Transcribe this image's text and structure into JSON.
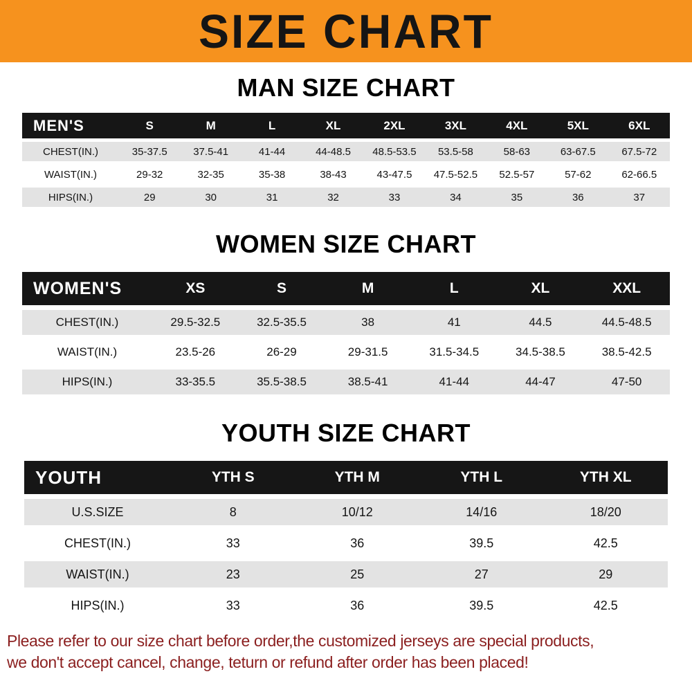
{
  "banner": {
    "title": "SIZE CHART"
  },
  "footer": {
    "line1": "Please refer to our size chart before order,the customized jerseys are special products,",
    "line2": "we don't accept cancel, change, teturn or refund after order has been placed!"
  },
  "colors": {
    "banner_bg": "#f6921e",
    "table_header_bg": "#161616",
    "row_alt_bg": "#e3e3e3",
    "footer_text": "#8b1f1f"
  },
  "chart_data": [
    {
      "type": "table",
      "title": "MAN SIZE CHART",
      "corner_label": "MEN'S",
      "columns": [
        "S",
        "M",
        "L",
        "XL",
        "2XL",
        "3XL",
        "4XL",
        "5XL",
        "6XL"
      ],
      "rows": [
        {
          "label": "CHEST(IN.)",
          "values": [
            "35-37.5",
            "37.5-41",
            "41-44",
            "44-48.5",
            "48.5-53.5",
            "53.5-58",
            "58-63",
            "63-67.5",
            "67.5-72"
          ]
        },
        {
          "label": "WAIST(IN.)",
          "values": [
            "29-32",
            "32-35",
            "35-38",
            "38-43",
            "43-47.5",
            "47.5-52.5",
            "52.5-57",
            "57-62",
            "62-66.5"
          ]
        },
        {
          "label": "HIPS(IN.)",
          "values": [
            "29",
            "30",
            "31",
            "32",
            "33",
            "34",
            "35",
            "36",
            "37"
          ]
        }
      ]
    },
    {
      "type": "table",
      "title": "WOMEN SIZE CHART",
      "corner_label": "WOMEN'S",
      "columns": [
        "XS",
        "S",
        "M",
        "L",
        "XL",
        "XXL"
      ],
      "rows": [
        {
          "label": "CHEST(IN.)",
          "values": [
            "29.5-32.5",
            "32.5-35.5",
            "38",
            "41",
            "44.5",
            "44.5-48.5"
          ]
        },
        {
          "label": "WAIST(IN.)",
          "values": [
            "23.5-26",
            "26-29",
            "29-31.5",
            "31.5-34.5",
            "34.5-38.5",
            "38.5-42.5"
          ]
        },
        {
          "label": "HIPS(IN.)",
          "values": [
            "33-35.5",
            "35.5-38.5",
            "38.5-41",
            "41-44",
            "44-47",
            "47-50"
          ]
        }
      ]
    },
    {
      "type": "table",
      "title": "YOUTH SIZE CHART",
      "corner_label": "YOUTH",
      "columns": [
        "YTH S",
        "YTH M",
        "YTH L",
        "YTH XL"
      ],
      "rows": [
        {
          "label": "U.S.SIZE",
          "values": [
            "8",
            "10/12",
            "14/16",
            "18/20"
          ]
        },
        {
          "label": "CHEST(IN.)",
          "values": [
            "33",
            "36",
            "39.5",
            "42.5"
          ]
        },
        {
          "label": "WAIST(IN.)",
          "values": [
            "23",
            "25",
            "27",
            "29"
          ]
        },
        {
          "label": "HIPS(IN.)",
          "values": [
            "33",
            "36",
            "39.5",
            "42.5"
          ]
        }
      ]
    }
  ]
}
